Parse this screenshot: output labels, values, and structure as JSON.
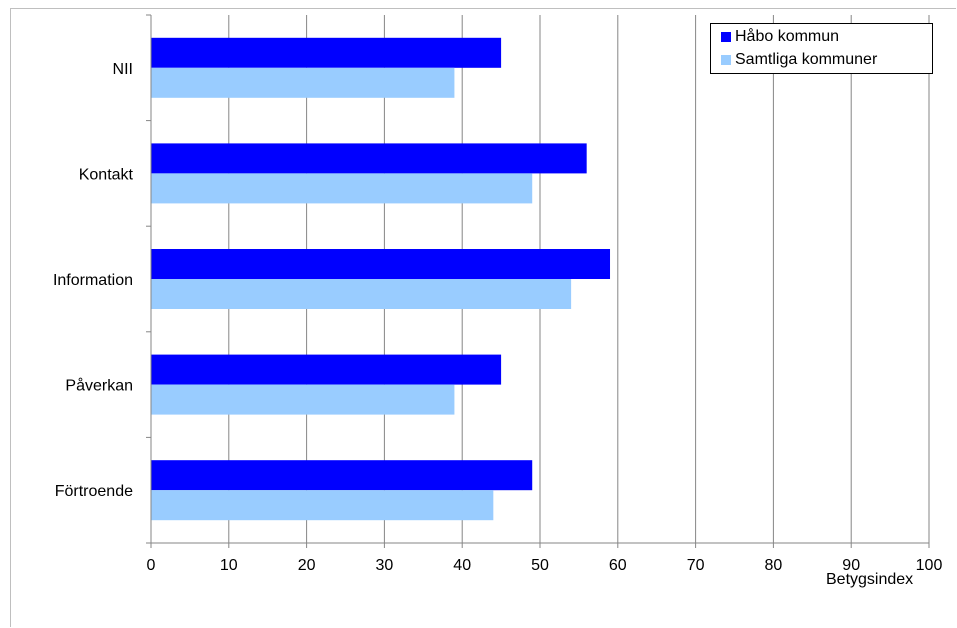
{
  "chart_data": {
    "type": "bar",
    "orientation": "horizontal",
    "categories": [
      "NII",
      "Kontakt",
      "Information",
      "Påverkan",
      "Förtroende"
    ],
    "series": [
      {
        "name": "Håbo kommun",
        "color": "#0000ff",
        "values": [
          45,
          56,
          59,
          45,
          49
        ]
      },
      {
        "name": "Samtliga kommuner",
        "color": "#99ccff",
        "values": [
          39,
          49,
          54,
          39,
          44
        ]
      }
    ],
    "xlabel": "Betygsindex",
    "ylabel": "",
    "xlim": [
      0,
      100
    ],
    "xticks": [
      "0",
      "10",
      "20",
      "30",
      "40",
      "50",
      "60",
      "70",
      "80",
      "90",
      "100"
    ],
    "grid": "vertical",
    "legend_position": "top-right"
  }
}
